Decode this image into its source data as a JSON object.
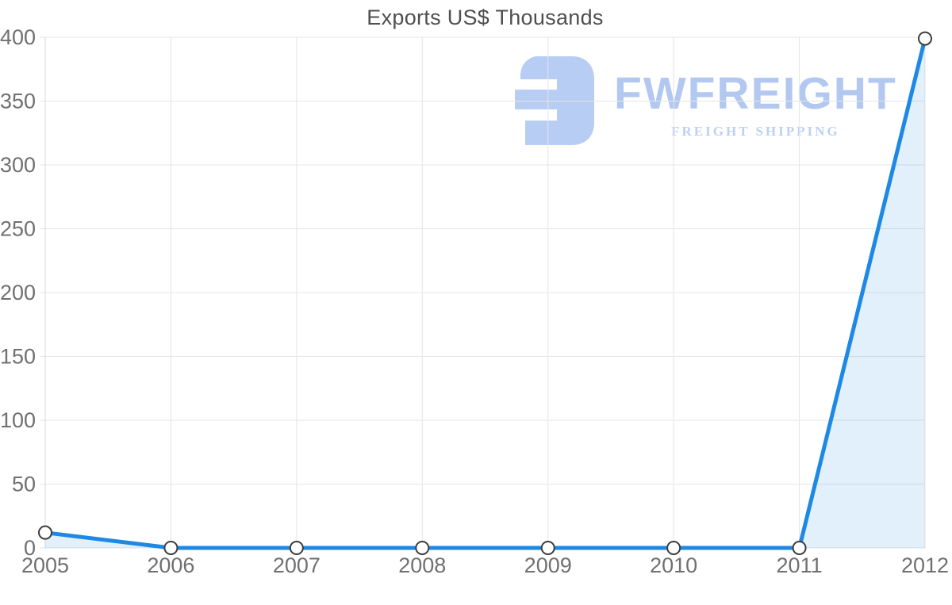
{
  "watermark": {
    "brand": "FWFREIGHT",
    "tagline": "FREIGHT SHIPPING",
    "mark_color": "#b7cdf3",
    "brand_color": "#b3c8f0",
    "tagline_color": "#bdd0f3"
  },
  "chart_data": {
    "type": "area",
    "title": "Exports US$ Thousands",
    "categories": [
      "2005",
      "2006",
      "2007",
      "2008",
      "2009",
      "2010",
      "2011",
      "2012"
    ],
    "series": [
      {
        "name": "Exports US$ Thousands",
        "values": [
          12,
          0,
          0,
          0,
          0,
          0,
          0,
          399
        ]
      }
    ],
    "ylim": [
      0,
      400
    ],
    "ytick_step": 50,
    "ytick_labels": [
      "0",
      "50",
      "100",
      "150",
      "200",
      "250",
      "300",
      "350",
      "400"
    ],
    "grid": true,
    "legend": false,
    "colors": {
      "line": "#1e88e5",
      "area_fill": "rgba(30,136,229,0.13)",
      "grid": "#e5e5e5",
      "axis": "#d8d8d8",
      "tick_text": "#707070",
      "title_text": "#4f4f4f",
      "marker_fill": "#ffffff",
      "marker_stroke": "#3c3c3c"
    }
  }
}
